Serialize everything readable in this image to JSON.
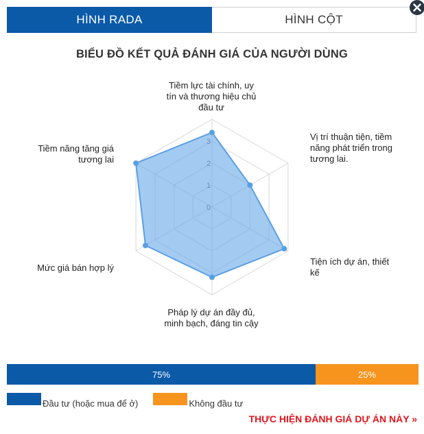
{
  "tabs": [
    {
      "label": "HÌNH RADA",
      "active": true
    },
    {
      "label": "HÌNH CỘT",
      "active": false
    }
  ],
  "chart_data": {
    "type": "radar",
    "title": "BIỂU ĐỒ KẾT QUẢ ĐÁNH GIÁ CỦA NGƯỜI DÙNG",
    "axes": [
      "Tiềm lực tài chính, uy tín và thương hiệu chủ đầu tư",
      "Vị trí thuận tiện, tiềm năng phát triển trong tương lai.",
      "Tiện ích dự án, thiết kế",
      "Pháp lý dự án đầy đủ, minh bạch, đáng tin cậy",
      "Mức giá bán hợp lý",
      "Tiềm năng tăng giá tương lai"
    ],
    "ticks": [
      "0",
      "1",
      "2",
      "3"
    ],
    "range": [
      0,
      4
    ],
    "series": [
      {
        "values": [
          3.4,
          2.0,
          3.8,
          3.2,
          3.5,
          4.0
        ],
        "color": "#6aaae8"
      }
    ]
  },
  "vote_bar": {
    "invest_pct": 75,
    "invest_label": "75%",
    "no_pct": 25,
    "no_label": "25%"
  },
  "legend": {
    "invest": "Đầu tư (hoặc mua để ở)",
    "no_invest": "Không đầu tư",
    "invest_color": "#0a5aa8",
    "no_invest_color": "#f7941d"
  },
  "cta": "THỰC HIỆN ĐÁNH GIÁ DỰ ÁN NÀY »"
}
